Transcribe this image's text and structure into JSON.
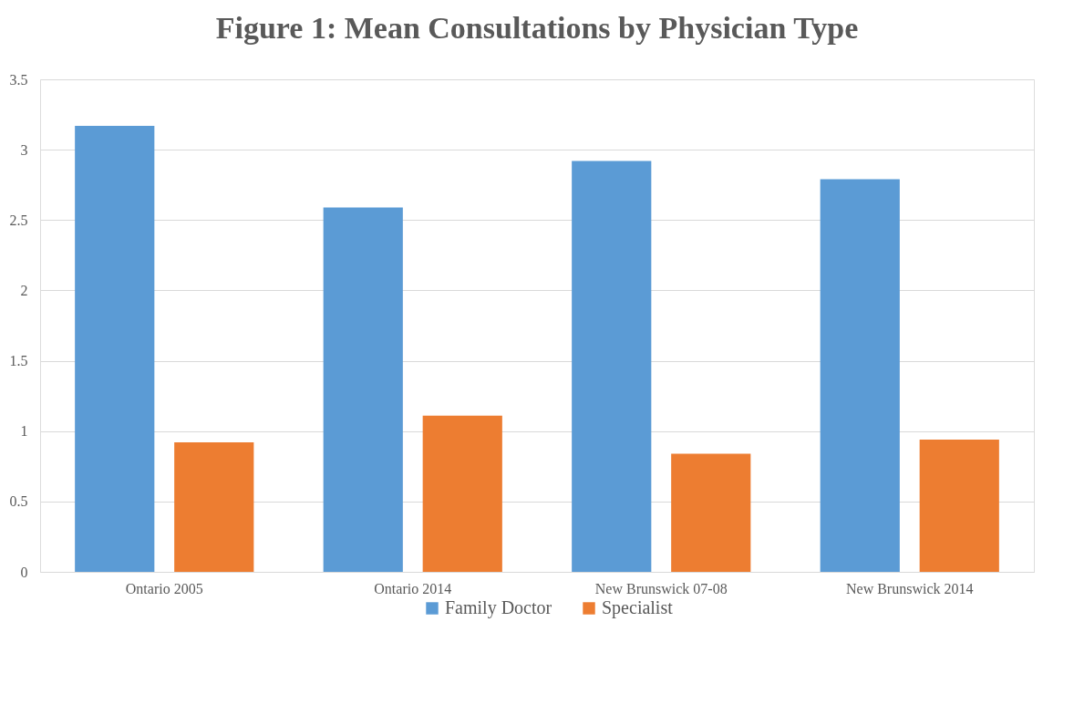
{
  "chart_data": {
    "type": "bar",
    "title": "Figure 1: Mean Consultations by Physician Type",
    "categories": [
      "Ontario 2005",
      "Ontario 2014",
      "New Brunswick 07-08",
      "New Brunswick 2014"
    ],
    "series": [
      {
        "name": "Family Doctor",
        "color": "#5b9bd5",
        "values": [
          3.17,
          2.59,
          2.92,
          2.79
        ]
      },
      {
        "name": "Specialist",
        "color": "#ed7d31",
        "values": [
          0.92,
          1.11,
          0.84,
          0.94
        ]
      }
    ],
    "ylim": [
      0,
      3.5
    ],
    "yticks": [
      0,
      0.5,
      1,
      1.5,
      2,
      2.5,
      3,
      3.5
    ],
    "grid": "y",
    "legend": "bottom"
  }
}
